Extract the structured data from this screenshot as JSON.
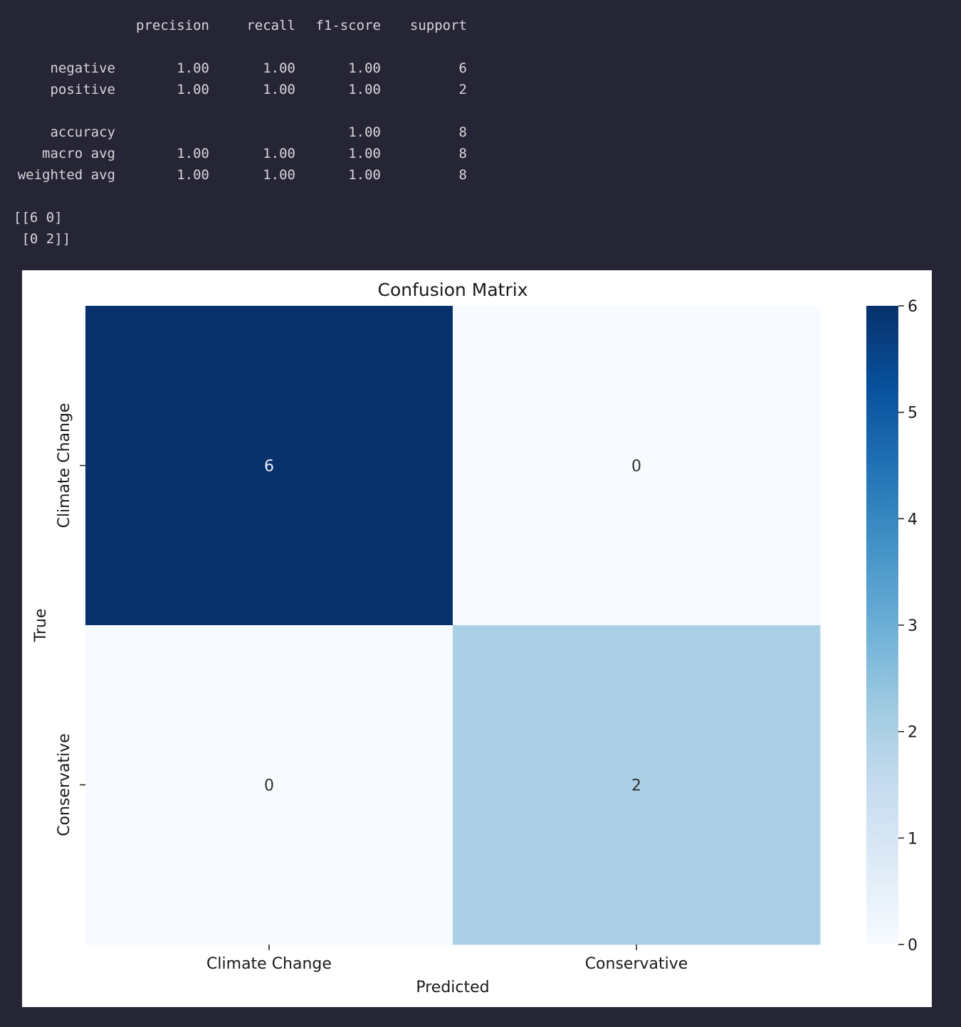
{
  "report": {
    "headers": [
      "precision",
      "recall",
      "f1-score",
      "support"
    ],
    "rows": [
      {
        "label": "negative",
        "precision": "1.00",
        "recall": "1.00",
        "f1": "1.00",
        "support": "6"
      },
      {
        "label": "positive",
        "precision": "1.00",
        "recall": "1.00",
        "f1": "1.00",
        "support": "2"
      },
      {
        "label": "accuracy",
        "precision": "",
        "recall": "",
        "f1": "1.00",
        "support": "8"
      },
      {
        "label": "macro avg",
        "precision": "1.00",
        "recall": "1.00",
        "f1": "1.00",
        "support": "8"
      },
      {
        "label": "weighted avg",
        "precision": "1.00",
        "recall": "1.00",
        "f1": "1.00",
        "support": "8"
      }
    ],
    "matrix_lines": [
      "[[6 0]",
      " [0 2]]"
    ]
  },
  "chart_data": {
    "type": "heatmap",
    "title": "Confusion Matrix",
    "xlabel": "Predicted",
    "ylabel": "True",
    "x_categories": [
      "Climate Change",
      "Conservative"
    ],
    "y_categories": [
      "Climate Change",
      "Conservative"
    ],
    "values": [
      [
        6,
        0
      ],
      [
        0,
        2
      ]
    ],
    "annotations": [
      "6",
      "0",
      "0",
      "2"
    ],
    "colormap": "Blues",
    "colorbar": {
      "range": [
        0,
        6
      ],
      "ticks": [
        "0",
        "1",
        "2",
        "3",
        "4",
        "5",
        "6"
      ]
    },
    "colors": {
      "cell_6": "#17306a",
      "cell_2": "#b4d0e4",
      "cell_0": "#f7fbff",
      "annot_dark_bg": "#e8eef8",
      "annot_light_bg": "#2f2f2f"
    }
  }
}
